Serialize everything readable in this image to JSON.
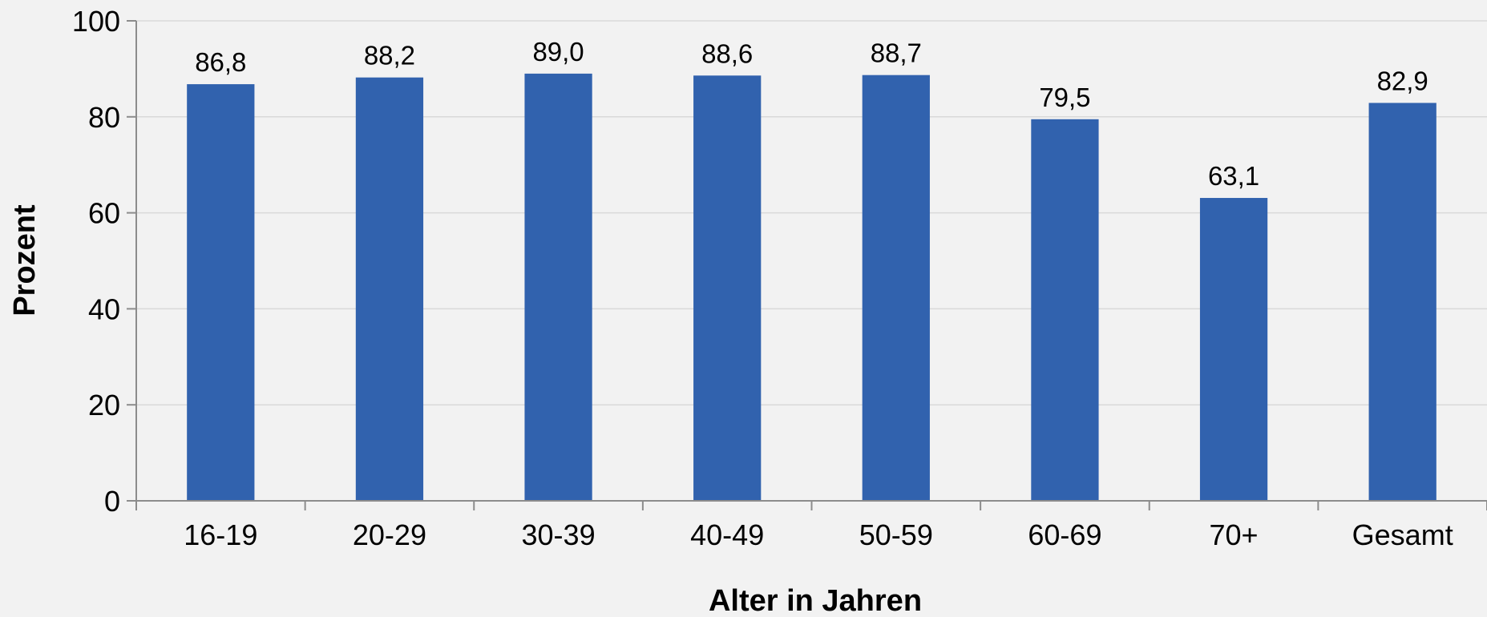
{
  "chart_data": {
    "type": "bar",
    "categories": [
      "16-19",
      "20-29",
      "30-39",
      "40-49",
      "50-59",
      "60-69",
      "70+",
      "Gesamt"
    ],
    "values": [
      86.8,
      88.2,
      89.0,
      88.6,
      88.7,
      79.5,
      63.1,
      82.9
    ],
    "data_labels": [
      "86,8",
      "88,2",
      "89,0",
      "88,6",
      "88,7",
      "79,5",
      "63,1",
      "82,9"
    ],
    "title": "",
    "xlabel": "Alter in Jahren",
    "ylabel": "Prozent",
    "ylim": [
      0,
      100
    ],
    "yticks": [
      0,
      20,
      40,
      60,
      80,
      100
    ],
    "grid": true,
    "legend": "none",
    "bar_color": "#3162ae",
    "grid_color": "#d9d9d9",
    "axis_color": "#8c8c8c",
    "background": "#f2f2f2"
  }
}
